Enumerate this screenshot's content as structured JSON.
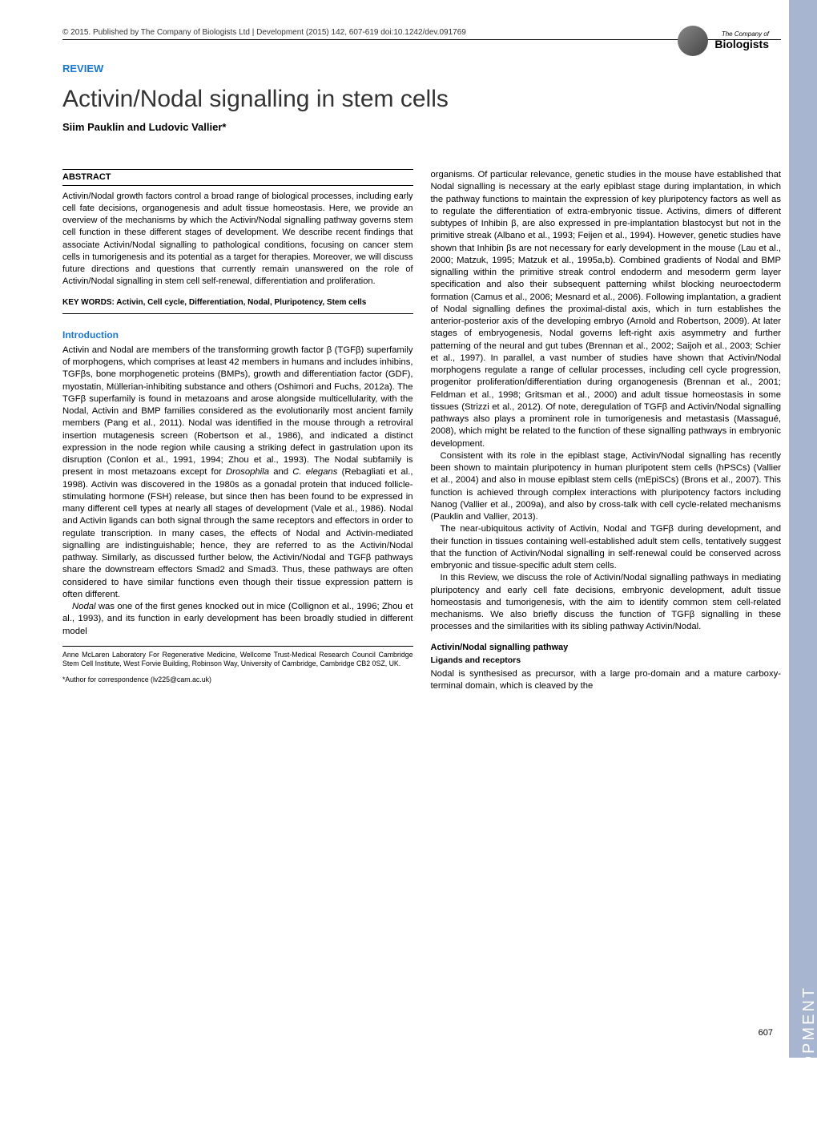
{
  "header": {
    "citation": "© 2015. Published by The Company of Biologists Ltd | Development (2015) 142, 607-619 doi:10.1242/dev.091769"
  },
  "logo": {
    "company_prefix": "The",
    "company": "Company of",
    "biologists": "Biologists"
  },
  "side_banner": {
    "text": "DEVELOPMENT",
    "color": "#a8b5d1"
  },
  "article": {
    "type": "REVIEW",
    "title": "Activin/Nodal signalling in stem cells",
    "authors": "Siim Pauklin and Ludovic Vallier*"
  },
  "abstract": {
    "heading": "ABSTRACT",
    "text": "Activin/Nodal growth factors control a broad range of biological processes, including early cell fate decisions, organogenesis and adult tissue homeostasis. Here, we provide an overview of the mechanisms by which the Activin/Nodal signalling pathway governs stem cell function in these different stages of development. We describe recent findings that associate Activin/Nodal signalling to pathological conditions, focusing on cancer stem cells in tumorigenesis and its potential as a target for therapies. Moreover, we will discuss future directions and questions that currently remain unanswered on the role of Activin/Nodal signalling in stem cell self-renewal, differentiation and proliferation."
  },
  "keywords": {
    "label": "KEY WORDS:",
    "text": "Activin, Cell cycle, Differentiation, Nodal, Pluripotency, Stem cells"
  },
  "introduction": {
    "heading": "Introduction",
    "para1": "Activin and Nodal are members of the transforming growth factor β (TGFβ) superfamily of morphogens, which comprises at least 42 members in humans and includes inhibins, TGFβs, bone morphogenetic proteins (BMPs), growth and differentiation factor (GDF), myostatin, Müllerian-inhibiting substance and others (Oshimori and Fuchs, 2012a). The TGFβ superfamily is found in metazoans and arose alongside multicellularity, with the Nodal, Activin and BMP families considered as the evolutionarily most ancient family members (Pang et al., 2011). Nodal was identified in the mouse through a retroviral insertion mutagenesis screen (Robertson et al., 1986), and indicated a distinct expression in the node region while causing a striking defect in gastrulation upon its disruption (Conlon et al., 1991, 1994; Zhou et al., 1993). The Nodal subfamily is present in most metazoans except for ",
    "para1_italic1": "Drosophila",
    "para1_mid": " and ",
    "para1_italic2": "C. elegans",
    "para1_end": " (Rebagliati et al., 1998). Activin was discovered in the 1980s as a gonadal protein that induced follicle-stimulating hormone (FSH) release, but since then has been found to be expressed in many different cell types at nearly all stages of development (Vale et al., 1986). Nodal and Activin ligands can both signal through the same receptors and effectors in order to regulate transcription. In many cases, the effects of Nodal and Activin-mediated signalling are indistinguishable; hence, they are referred to as the Activin/Nodal pathway. Similarly, as discussed further below, the Activin/Nodal and TGFβ pathways share the downstream effectors Smad2 and Smad3. Thus, these pathways are often considered to have similar functions even though their tissue expression pattern is often different.",
    "para2_italic": "Nodal",
    "para2": " was one of the first genes knocked out in mice (Collignon et al., 1996; Zhou et al., 1993), and its function in early development has been broadly studied in different model"
  },
  "right_column": {
    "para1": "organisms. Of particular relevance, genetic studies in the mouse have established that Nodal signalling is necessary at the early epiblast stage during implantation, in which the pathway functions to maintain the expression of key pluripotency factors as well as to regulate the differentiation of extra-embryonic tissue. Activins, dimers of different subtypes of Inhibin β, are also expressed in pre-implantation blastocyst but not in the primitive streak (Albano et al., 1993; Feijen et al., 1994). However, genetic studies have shown that Inhibin βs are not necessary for early development in the mouse (Lau et al., 2000; Matzuk, 1995; Matzuk et al., 1995a,b). Combined gradients of Nodal and BMP signalling within the primitive streak control endoderm and mesoderm germ layer specification and also their subsequent patterning whilst blocking neuroectoderm formation (Camus et al., 2006; Mesnard et al., 2006). Following implantation, a gradient of Nodal signalling defines the proximal-distal axis, which in turn establishes the anterior-posterior axis of the developing embryo (Arnold and Robertson, 2009). At later stages of embryogenesis, Nodal governs left-right axis asymmetry and further patterning of the neural and gut tubes (Brennan et al., 2002; Saijoh et al., 2003; Schier et al., 1997). In parallel, a vast number of studies have shown that Activin/Nodal morphogens regulate a range of cellular processes, including cell cycle progression, progenitor proliferation/differentiation during organogenesis (Brennan et al., 2001; Feldman et al., 1998; Gritsman et al., 2000) and adult tissue homeostasis in some tissues (Strizzi et al., 2012). Of note, deregulation of TGFβ and Activin/Nodal signalling pathways also plays a prominent role in tumorigenesis and metastasis (Massagué, 2008), which might be related to the function of these signalling pathways in embryonic development.",
    "para2": "Consistent with its role in the epiblast stage, Activin/Nodal signalling has recently been shown to maintain pluripotency in human pluripotent stem cells (hPSCs) (Vallier et al., 2004) and also in mouse epiblast stem cells (mEpiSCs) (Brons et al., 2007). This function is achieved through complex interactions with pluripotency factors including Nanog (Vallier et al., 2009a), and also by cross-talk with cell cycle-related mechanisms (Pauklin and Vallier, 2013).",
    "para3": "The near-ubiquitous activity of Activin, Nodal and TGFβ during development, and their function in tissues containing well-established adult stem cells, tentatively suggest that the function of Activin/Nodal signalling in self-renewal could be conserved across embryonic and tissue-specific adult stem cells.",
    "para4": "In this Review, we discuss the role of Activin/Nodal signalling pathways in mediating pluripotency and early cell fate decisions, embryonic development, adult tissue homeostasis and tumorigenesis, with the aim to identify common stem cell-related mechanisms. We also briefly discuss the function of TGFβ signalling in these processes and the similarities with its sibling pathway Activin/Nodal."
  },
  "section2": {
    "heading": "Activin/Nodal signalling pathway",
    "subheading": "Ligands and receptors",
    "text": "Nodal is synthesised as precursor, with a large pro-domain and a mature carboxy-terminal domain, which is cleaved by the"
  },
  "affiliation": {
    "text": "Anne McLaren Laboratory For Regenerative Medicine, Wellcome Trust-Medical Research Council Cambridge Stem Cell Institute, West Forvie Building, Robinson Way, University of Cambridge, Cambridge CB2 0SZ, UK."
  },
  "correspondence": {
    "text": "*Author for correspondence (lv225@cam.ac.uk)"
  },
  "page_number": "607"
}
